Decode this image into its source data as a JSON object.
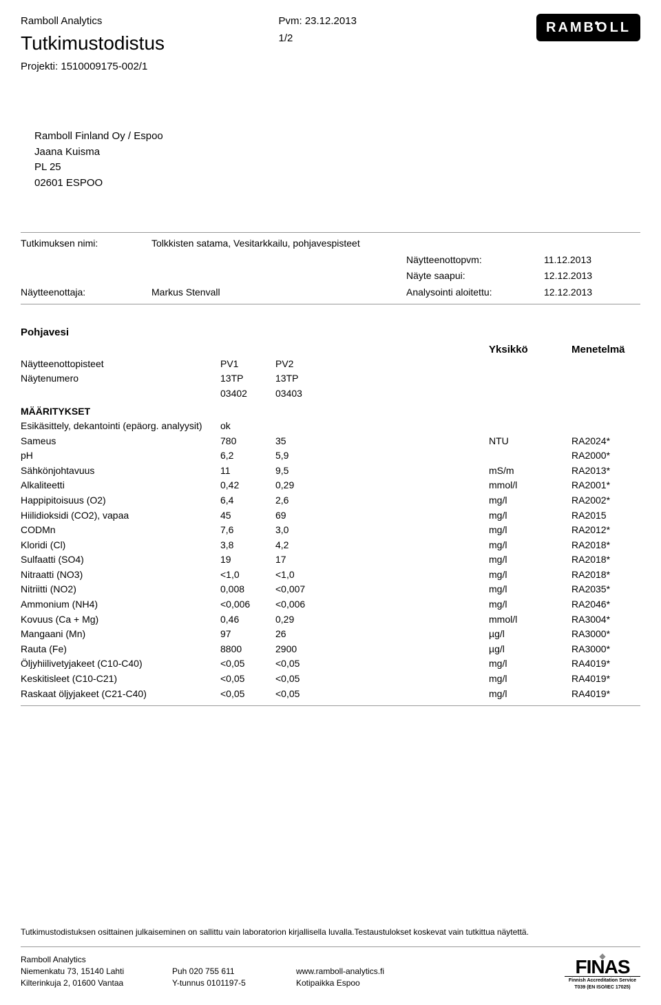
{
  "header": {
    "company_small": "Ramboll Analytics",
    "title": "Tutkimustodistus",
    "project_label": "Projekti: 1510009175-002/1",
    "pvm": "Pvm: 23.12.2013",
    "page": "1/2",
    "logo_parts": {
      "a": "RAMB",
      "b": "LL"
    }
  },
  "address": {
    "l1": "Ramboll Finland Oy / Espoo",
    "l2": "Jaana Kuisma",
    "l3": "PL 25",
    "l4": "02601 ESPOO"
  },
  "meta": {
    "study_label": "Tutkimuksen nimi:",
    "study_val": "Tolkkisten satama, Vesitarkkailu, pohjavespisteet",
    "sampler_label": "Näytteenottaja:",
    "sampler_val": "Markus Stenvall",
    "r1_label": "Näytteenottopvm:",
    "r1_val": "11.12.2013",
    "r2_label": "Näyte saapui:",
    "r2_val": "12.12.2013",
    "r3_label": "Analysointi aloitettu:",
    "r3_val": "12.12.2013"
  },
  "results": {
    "section_title": "Pohjavesi",
    "unit_header": "Yksikkö",
    "method_header": "Menetelmä",
    "points_label": "Näytteenottopisteet",
    "number_label": "Näytenumero",
    "pv1": "PV1",
    "pv2": "PV2",
    "num1a": "13TP",
    "num1b": "03402",
    "num2a": "13TP",
    "num2b": "03403",
    "group_head": "MÄÄRITYKSET",
    "rows": [
      {
        "name": "Esikäsittely, dekantointi (epäorg. analyysit)",
        "v1": "ok",
        "v2": "",
        "unit": "",
        "method": ""
      },
      {
        "name": "Sameus",
        "v1": "780",
        "v2": "35",
        "unit": "NTU",
        "method": "RA2024*"
      },
      {
        "name": "pH",
        "v1": "6,2",
        "v2": "5,9",
        "unit": "",
        "method": "RA2000*"
      },
      {
        "name": "Sähkönjohtavuus",
        "v1": "11",
        "v2": "9,5",
        "unit": "mS/m",
        "method": "RA2013*"
      },
      {
        "name": "Alkaliteetti",
        "v1": "0,42",
        "v2": "0,29",
        "unit": "mmol/l",
        "method": "RA2001*"
      },
      {
        "name": "Happipitoisuus (O2)",
        "v1": "6,4",
        "v2": "2,6",
        "unit": "mg/l",
        "method": "RA2002*"
      },
      {
        "name": "Hiilidioksidi (CO2), vapaa",
        "v1": "45",
        "v2": "69",
        "unit": "mg/l",
        "method": "RA2015"
      },
      {
        "name": "CODMn",
        "v1": "7,6",
        "v2": "3,0",
        "unit": "mg/l",
        "method": "RA2012*"
      },
      {
        "name": "Kloridi (Cl)",
        "v1": "3,8",
        "v2": "4,2",
        "unit": "mg/l",
        "method": "RA2018*"
      },
      {
        "name": "Sulfaatti (SO4)",
        "v1": "19",
        "v2": "17",
        "unit": "mg/l",
        "method": "RA2018*"
      },
      {
        "name": "Nitraatti (NO3)",
        "v1": "<1,0",
        "v2": "<1,0",
        "unit": "mg/l",
        "method": "RA2018*"
      },
      {
        "name": "Nitriitti (NO2)",
        "v1": "0,008",
        "v2": "<0,007",
        "unit": "mg/l",
        "method": "RA2035*"
      },
      {
        "name": "Ammonium (NH4)",
        "v1": "<0,006",
        "v2": "<0,006",
        "unit": "mg/l",
        "method": "RA2046*"
      },
      {
        "name": "Kovuus (Ca + Mg)",
        "v1": "0,46",
        "v2": "0,29",
        "unit": "mmol/l",
        "method": "RA3004*"
      },
      {
        "name": "Mangaani (Mn)",
        "v1": "97",
        "v2": "26",
        "unit": "µg/l",
        "method": "RA3000*"
      },
      {
        "name": "Rauta (Fe)",
        "v1": "8800",
        "v2": "2900",
        "unit": "µg/l",
        "method": "RA3000*"
      },
      {
        "name": "Öljyhiilivetyjakeet (C10-C40)",
        "v1": "<0,05",
        "v2": "<0,05",
        "unit": "mg/l",
        "method": "RA4019*"
      },
      {
        "name": "Keskitisleet (C10-C21)",
        "v1": "<0,05",
        "v2": "<0,05",
        "unit": "mg/l",
        "method": "RA4019*"
      },
      {
        "name": "Raskaat öljyjakeet (C21-C40)",
        "v1": "<0,05",
        "v2": "<0,05",
        "unit": "mg/l",
        "method": "RA4019*"
      }
    ]
  },
  "disclaimer": "Tutkimustodistuksen osittainen julkaiseminen on sallittu vain laboratorion kirjallisella luvalla.Testaustulokset koskevat vain tutkittua näytettä.",
  "footer": {
    "c1a": "Ramboll Analytics",
    "c1b": "Niemenkatu 73, 15140 Lahti",
    "c1c": "Kilterinkuja 2, 01600 Vantaa",
    "c2a": "Puh 020 755 611",
    "c2b": "Y-tunnus 0101197-5",
    "c3a": "www.ramboll-analytics.fi",
    "c3b": "Kotipaikka Espoo",
    "finas_word": "FINAS",
    "finas_sub": "Finnish Accreditation Service",
    "finas_code": "T039 (EN ISO/IEC 17025)"
  }
}
